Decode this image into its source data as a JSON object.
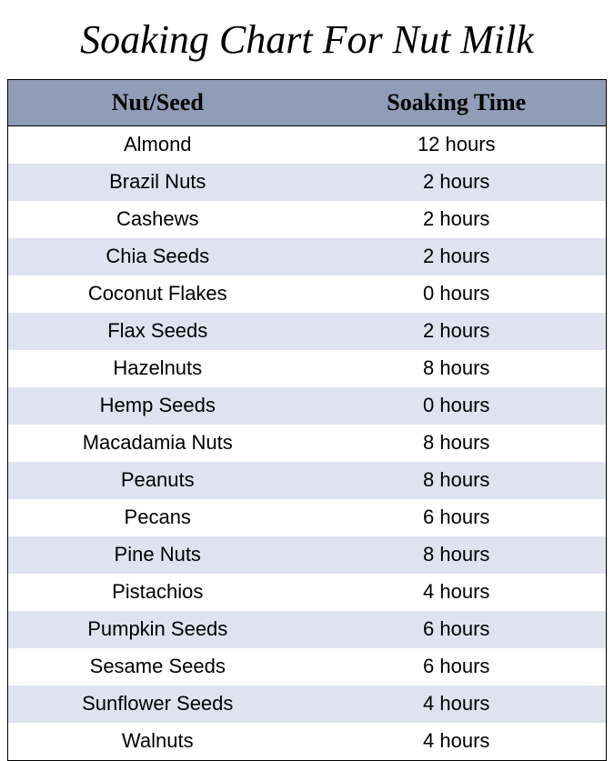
{
  "title": "Soaking Chart For Nut Milk",
  "table": {
    "columns": [
      "Nut/Seed",
      "Soaking Time"
    ],
    "rows": [
      [
        "Almond",
        "12 hours"
      ],
      [
        "Brazil Nuts",
        "2 hours"
      ],
      [
        "Cashews",
        "2 hours"
      ],
      [
        "Chia Seeds",
        "2 hours"
      ],
      [
        "Coconut Flakes",
        "0 hours"
      ],
      [
        "Flax Seeds",
        "2 hours"
      ],
      [
        "Hazelnuts",
        "8 hours"
      ],
      [
        "Hemp Seeds",
        "0 hours"
      ],
      [
        "Macadamia Nuts",
        "8 hours"
      ],
      [
        "Peanuts",
        "8 hours"
      ],
      [
        "Pecans",
        "6 hours"
      ],
      [
        "Pine Nuts",
        "8 hours"
      ],
      [
        "Pistachios",
        "4 hours"
      ],
      [
        "Pumpkin Seeds",
        "6 hours"
      ],
      [
        "Sesame Seeds",
        "6 hours"
      ],
      [
        "Sunflower Seeds",
        "4 hours"
      ],
      [
        "Walnuts",
        "4 hours"
      ]
    ],
    "header_bg_color": "#8f9db7",
    "row_odd_bg_color": "#ffffff",
    "row_even_bg_color": "#dfe3ef",
    "border_color": "#000000",
    "text_color": "#000000",
    "title_font": "Brush Script MT, cursive",
    "header_font": "Georgia, serif",
    "body_font": "Segoe UI, Arial, sans-serif",
    "title_fontsize": 44,
    "header_fontsize": 26,
    "body_fontsize": 22
  }
}
